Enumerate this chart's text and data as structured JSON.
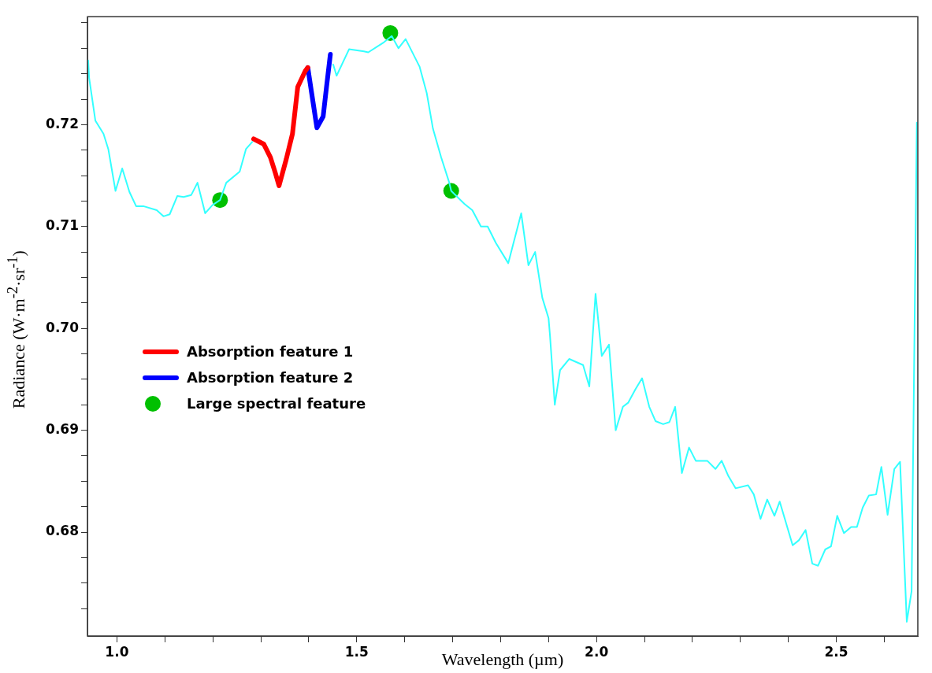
{
  "chart_data": {
    "type": "line",
    "xlabel": "Wavelength (µm)",
    "ylabel": "Radiance (W·m$^{-2}$·sr$^{-1}$)",
    "xlim": [
      0.9385,
      2.67
    ],
    "ylim": [
      0.6698,
      0.7306
    ],
    "xticks": [
      {
        "value": 1.0,
        "label": "1.0"
      },
      {
        "value": 1.1,
        "label": null
      },
      {
        "value": 1.2,
        "label": null
      },
      {
        "value": 1.3,
        "label": null
      },
      {
        "value": 1.4,
        "label": null
      },
      {
        "value": 1.5,
        "label": "1.5"
      },
      {
        "value": 1.6,
        "label": null
      },
      {
        "value": 1.7,
        "label": null
      },
      {
        "value": 1.8,
        "label": null
      },
      {
        "value": 1.9,
        "label": null
      },
      {
        "value": 2.0,
        "label": "2.0"
      },
      {
        "value": 2.1,
        "label": null
      },
      {
        "value": 2.2,
        "label": null
      },
      {
        "value": 2.3,
        "label": null
      },
      {
        "value": 2.4,
        "label": null
      },
      {
        "value": 2.5,
        "label": "2.5"
      },
      {
        "value": 2.6,
        "label": null
      }
    ],
    "yticks": [
      {
        "value": 0.6725,
        "label": null
      },
      {
        "value": 0.675,
        "label": null
      },
      {
        "value": 0.6775,
        "label": null
      },
      {
        "value": 0.68,
        "label": "0.68"
      },
      {
        "value": 0.6825,
        "label": null
      },
      {
        "value": 0.685,
        "label": null
      },
      {
        "value": 0.6875,
        "label": null
      },
      {
        "value": 0.69,
        "label": "0.69"
      },
      {
        "value": 0.6925,
        "label": null
      },
      {
        "value": 0.695,
        "label": null
      },
      {
        "value": 0.6975,
        "label": null
      },
      {
        "value": 0.7,
        "label": "0.70"
      },
      {
        "value": 0.7025,
        "label": null
      },
      {
        "value": 0.705,
        "label": null
      },
      {
        "value": 0.7075,
        "label": null
      },
      {
        "value": 0.71,
        "label": "0.71"
      },
      {
        "value": 0.7125,
        "label": null
      },
      {
        "value": 0.715,
        "label": null
      },
      {
        "value": 0.7175,
        "label": null
      },
      {
        "value": 0.72,
        "label": "0.72"
      },
      {
        "value": 0.7225,
        "label": null
      },
      {
        "value": 0.725,
        "label": null
      },
      {
        "value": 0.7275,
        "label": null
      },
      {
        "value": 0.73,
        "label": null
      }
    ],
    "grid": false,
    "legend": "center left",
    "marker": "none",
    "series": [
      {
        "color": "#33ffff",
        "x": [
          0.94,
          0.942,
          0.955,
          0.972,
          0.982,
          0.997,
          1.011,
          1.026,
          1.04,
          1.055,
          1.083,
          1.097,
          1.11,
          1.126,
          1.139,
          1.155,
          1.168,
          1.184,
          1.199,
          1.215,
          1.228,
          1.256,
          1.269,
          1.282,
          1.36,
          1.451,
          1.458,
          1.484,
          1.515,
          1.524,
          1.557,
          1.573,
          1.587,
          1.602,
          1.631,
          1.646,
          1.659,
          1.676,
          1.693,
          1.697,
          1.725,
          1.741,
          1.759,
          1.773,
          1.79,
          1.816,
          1.843,
          1.858,
          1.872,
          1.887,
          1.9,
          1.903,
          1.913,
          1.924,
          1.943,
          1.972,
          1.985,
          1.998,
          2.011,
          2.026,
          2.04,
          2.055,
          2.066,
          2.081,
          2.095,
          2.11,
          2.123,
          2.139,
          2.152,
          2.164,
          2.178,
          2.193,
          2.207,
          2.231,
          2.248,
          2.261,
          2.275,
          2.29,
          2.316,
          2.328,
          2.342,
          2.356,
          2.371,
          2.382,
          2.409,
          2.422,
          2.436,
          2.45,
          2.462,
          2.477,
          2.489,
          2.502,
          2.516,
          2.531,
          2.543,
          2.555,
          2.568,
          2.583,
          2.594,
          2.607,
          2.621,
          2.633,
          2.647,
          2.657,
          2.668
        ],
        "values": [
          0.7263,
          0.7246,
          0.7204,
          0.7191,
          0.7176,
          0.7135,
          0.7157,
          0.7134,
          0.712,
          0.712,
          0.7116,
          0.711,
          0.7112,
          0.713,
          0.7129,
          0.7131,
          0.7143,
          0.7113,
          0.7121,
          0.7126,
          0.7143,
          0.7154,
          0.7176,
          0.7183,
          null,
          0.7259,
          0.7248,
          0.7274,
          0.7272,
          0.7271,
          0.7281,
          0.7287,
          0.7275,
          0.7284,
          0.7257,
          0.7231,
          0.7196,
          0.7168,
          0.7143,
          0.7135,
          0.7122,
          0.7116,
          0.71,
          0.71,
          0.7084,
          0.7064,
          0.7113,
          0.7062,
          0.7075,
          0.703,
          0.701,
          0.6993,
          0.6925,
          0.6959,
          0.697,
          0.6964,
          0.6943,
          0.7034,
          0.6973,
          0.6984,
          0.69,
          0.6923,
          0.6927,
          0.694,
          0.6951,
          0.6923,
          0.6909,
          0.6906,
          0.6908,
          0.6923,
          0.6858,
          0.6883,
          0.687,
          0.687,
          0.6862,
          0.687,
          0.6855,
          0.6843,
          0.6846,
          0.6837,
          0.6813,
          0.6832,
          0.6816,
          0.683,
          0.6787,
          0.6792,
          0.6802,
          0.6769,
          0.6767,
          0.6783,
          0.6786,
          0.6816,
          0.6799,
          0.6805,
          0.6805,
          0.6824,
          0.6836,
          0.6837,
          0.6864,
          0.6817,
          0.6862,
          0.6869,
          0.6712,
          0.6742,
          0.7202
        ]
      },
      {
        "name": "Absorption feature 1",
        "color": "#ff0000",
        "x": [
          1.285,
          1.306,
          1.32,
          1.33,
          1.338,
          1.353,
          1.366,
          1.377,
          1.393,
          1.398
        ],
        "values": [
          0.7186,
          0.7181,
          0.7168,
          0.7153,
          0.714,
          0.7166,
          0.7191,
          0.7237,
          0.7253,
          0.7256
        ]
      },
      {
        "name": "Absorption feature 2",
        "color": "#0000ff",
        "x": [
          1.398,
          1.406,
          1.417,
          1.43,
          1.437,
          1.445
        ],
        "values": [
          0.7256,
          0.7231,
          0.7197,
          0.7208,
          0.7237,
          0.7269
        ]
      },
      {
        "name": "Large spectral feature",
        "type": "scatter",
        "marker": "circle",
        "color": "#00c000",
        "x": [
          1.215,
          1.57,
          1.697
        ],
        "values": [
          0.7126,
          0.729,
          0.7135
        ]
      }
    ]
  }
}
